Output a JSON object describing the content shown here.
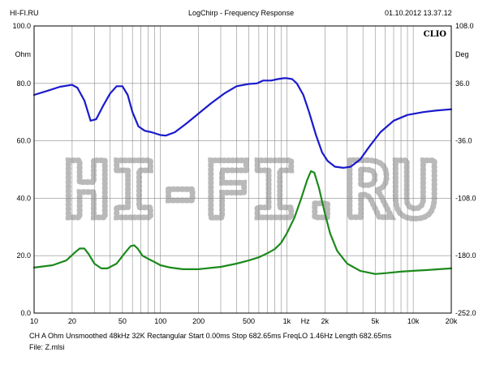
{
  "header": {
    "site": "HI-FI.RU",
    "title": "LogChirp - Frequency Response",
    "datetime": "01.10.2012 13.37.12"
  },
  "brand": "CLIO",
  "watermark": "HI-FI.RU",
  "footer": {
    "line1": "CH A  Ohm  Unsmoothed  48kHz  32K  Rectangular  Start 0.00ms    Stop 682.65ms    FreqLO 1.46Hz    Length 682.65ms",
    "line2": "File: Z.mlsi"
  },
  "colors": {
    "impedance": "#1a1acc",
    "phase": "#1c8a1c",
    "grid": "#8c8c8c",
    "frame": "#000000",
    "watermark": "#b9b9b9"
  },
  "chart_data": {
    "type": "line",
    "xscale": "log",
    "xlim": [
      10,
      20000
    ],
    "x_ticks": [
      "10",
      "20",
      "50",
      "100",
      "200",
      "500",
      "1k",
      "Hz",
      "2k",
      "5k",
      "10k",
      "20k"
    ],
    "left_axis": {
      "unit": "Ohm",
      "ylim": [
        0,
        100
      ],
      "ticks": [
        "100.0",
        "80.0",
        "60.0",
        "40.0",
        "20.0",
        "0.0"
      ]
    },
    "right_axis": {
      "unit": "Deg",
      "ylim": [
        -252,
        108
      ],
      "ticks": [
        "108.0",
        "36.0",
        "-36.0",
        "-108.0",
        "-180.0",
        "-252.0"
      ]
    },
    "grid": true,
    "series": [
      {
        "axis": "left",
        "points": [
          [
            10,
            76
          ],
          [
            13,
            77.5
          ],
          [
            16,
            78.8
          ],
          [
            20,
            79.5
          ],
          [
            22,
            78.5
          ],
          [
            25,
            74
          ],
          [
            28,
            67
          ],
          [
            31,
            67.5
          ],
          [
            35,
            72
          ],
          [
            40,
            76.5
          ],
          [
            45,
            79
          ],
          [
            50,
            79
          ],
          [
            55,
            76
          ],
          [
            60,
            70
          ],
          [
            67,
            65
          ],
          [
            75,
            63.5
          ],
          [
            85,
            63
          ],
          [
            100,
            62
          ],
          [
            110,
            61.8
          ],
          [
            130,
            63
          ],
          [
            160,
            66
          ],
          [
            200,
            69.5
          ],
          [
            250,
            73
          ],
          [
            320,
            76.5
          ],
          [
            400,
            79
          ],
          [
            500,
            79.8
          ],
          [
            580,
            80
          ],
          [
            650,
            81
          ],
          [
            750,
            81
          ],
          [
            850,
            81.5
          ],
          [
            950,
            81.8
          ],
          [
            1000,
            81.8
          ],
          [
            1100,
            81.5
          ],
          [
            1200,
            80
          ],
          [
            1350,
            76
          ],
          [
            1500,
            70
          ],
          [
            1700,
            62
          ],
          [
            1900,
            56
          ],
          [
            2100,
            53
          ],
          [
            2400,
            51
          ],
          [
            2800,
            50.6
          ],
          [
            3200,
            51
          ],
          [
            3800,
            53.5
          ],
          [
            4500,
            58
          ],
          [
            5500,
            63
          ],
          [
            7000,
            67
          ],
          [
            9000,
            69
          ],
          [
            12000,
            70
          ],
          [
            15000,
            70.5
          ],
          [
            20000,
            71
          ]
        ]
      },
      {
        "axis": "right",
        "points": [
          [
            10,
            -195
          ],
          [
            14,
            -192
          ],
          [
            18,
            -186
          ],
          [
            21,
            -176
          ],
          [
            23,
            -171
          ],
          [
            25,
            -171
          ],
          [
            27,
            -178
          ],
          [
            30,
            -190
          ],
          [
            34,
            -196
          ],
          [
            38,
            -196
          ],
          [
            45,
            -190
          ],
          [
            52,
            -177
          ],
          [
            58,
            -168
          ],
          [
            62,
            -167
          ],
          [
            66,
            -171
          ],
          [
            72,
            -180
          ],
          [
            80,
            -184
          ],
          [
            90,
            -188
          ],
          [
            100,
            -192
          ],
          [
            120,
            -195
          ],
          [
            150,
            -197
          ],
          [
            200,
            -197
          ],
          [
            300,
            -194
          ],
          [
            400,
            -190
          ],
          [
            500,
            -186
          ],
          [
            600,
            -182
          ],
          [
            700,
            -177
          ],
          [
            800,
            -172
          ],
          [
            900,
            -164
          ],
          [
            1000,
            -152
          ],
          [
            1150,
            -132
          ],
          [
            1300,
            -108
          ],
          [
            1450,
            -85
          ],
          [
            1550,
            -74
          ],
          [
            1650,
            -76
          ],
          [
            1800,
            -96
          ],
          [
            2000,
            -127
          ],
          [
            2200,
            -152
          ],
          [
            2500,
            -174
          ],
          [
            3000,
            -190
          ],
          [
            3800,
            -199
          ],
          [
            5000,
            -203
          ],
          [
            6000,
            -202
          ],
          [
            8000,
            -200
          ],
          [
            10000,
            -199
          ],
          [
            13000,
            -198
          ],
          [
            16000,
            -197
          ],
          [
            20000,
            -196
          ]
        ]
      }
    ]
  }
}
